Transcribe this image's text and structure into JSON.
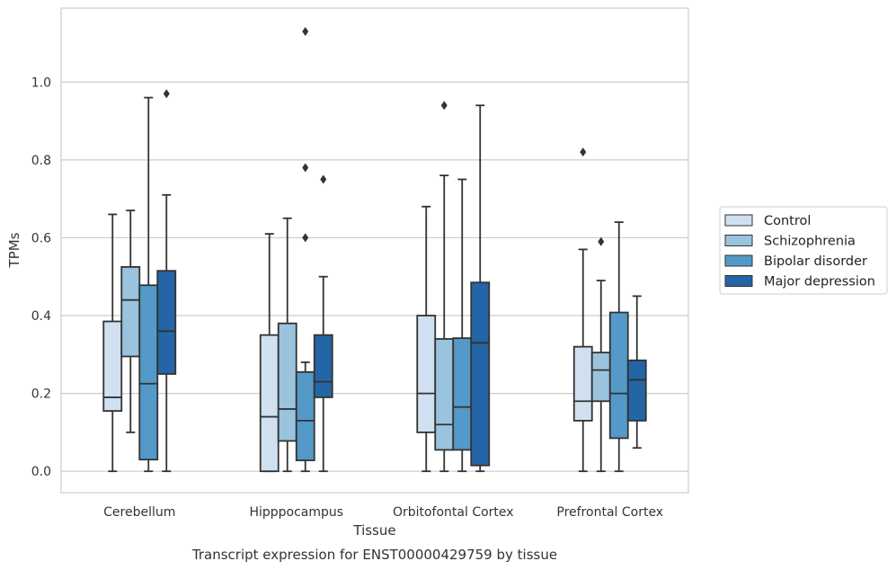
{
  "chart_data": {
    "type": "box",
    "xlabel": "Tissue",
    "ylabel": "TPMs",
    "caption": "Transcript expression for ENST00000429759 by tissue",
    "categories": [
      "Cerebellum",
      "Hipppocampus",
      "Orbitofontal Cortex",
      "Prefrontal Cortex"
    ],
    "yticks": [
      "0.0",
      "0.2",
      "0.4",
      "0.6",
      "0.8",
      "1.0"
    ],
    "ylim": [
      -0.055,
      1.19
    ],
    "grid": "horizontal",
    "legend_position": "right",
    "series": [
      {
        "name": "Control",
        "color": "#d0e0f0",
        "boxes": [
          {
            "whislo": 0.0,
            "q1": 0.155,
            "med": 0.19,
            "q3": 0.385,
            "whishi": 0.66,
            "fliers": []
          },
          {
            "whislo": 0.0,
            "q1": 0.0,
            "med": 0.14,
            "q3": 0.35,
            "whishi": 0.61,
            "fliers": []
          },
          {
            "whislo": 0.0,
            "q1": 0.1,
            "med": 0.2,
            "q3": 0.4,
            "whishi": 0.68,
            "fliers": []
          },
          {
            "whislo": 0.0,
            "q1": 0.13,
            "med": 0.18,
            "q3": 0.32,
            "whishi": 0.57,
            "fliers": [
              0.82
            ]
          }
        ]
      },
      {
        "name": "Schizophrenia",
        "color": "#9ac3dd",
        "boxes": [
          {
            "whislo": 0.1,
            "q1": 0.295,
            "med": 0.44,
            "q3": 0.525,
            "whishi": 0.67,
            "fliers": []
          },
          {
            "whislo": 0.0,
            "q1": 0.078,
            "med": 0.16,
            "q3": 0.38,
            "whishi": 0.65,
            "fliers": []
          },
          {
            "whislo": 0.0,
            "q1": 0.055,
            "med": 0.12,
            "q3": 0.34,
            "whishi": 0.76,
            "fliers": [
              0.94
            ]
          },
          {
            "whislo": 0.0,
            "q1": 0.18,
            "med": 0.26,
            "q3": 0.305,
            "whishi": 0.49,
            "fliers": [
              0.59
            ]
          }
        ]
      },
      {
        "name": "Bipolar disorder",
        "color": "#5499c7",
        "boxes": [
          {
            "whislo": 0.0,
            "q1": 0.03,
            "med": 0.225,
            "q3": 0.478,
            "whishi": 0.96,
            "fliers": []
          },
          {
            "whislo": 0.0,
            "q1": 0.028,
            "med": 0.13,
            "q3": 0.255,
            "whishi": 0.28,
            "fliers": [
              0.6,
              0.78,
              1.13
            ]
          },
          {
            "whislo": 0.0,
            "q1": 0.055,
            "med": 0.165,
            "q3": 0.342,
            "whishi": 0.75,
            "fliers": []
          },
          {
            "whislo": 0.0,
            "q1": 0.085,
            "med": 0.2,
            "q3": 0.408,
            "whishi": 0.64,
            "fliers": []
          }
        ]
      },
      {
        "name": "Major depression",
        "color": "#2465a5",
        "boxes": [
          {
            "whislo": 0.0,
            "q1": 0.25,
            "med": 0.36,
            "q3": 0.515,
            "whishi": 0.71,
            "fliers": [
              0.97
            ]
          },
          {
            "whislo": 0.0,
            "q1": 0.19,
            "med": 0.23,
            "q3": 0.35,
            "whishi": 0.5,
            "fliers": [
              0.75
            ]
          },
          {
            "whislo": 0.0,
            "q1": 0.015,
            "med": 0.33,
            "q3": 0.485,
            "whishi": 0.94,
            "fliers": []
          },
          {
            "whislo": 0.06,
            "q1": 0.13,
            "med": 0.235,
            "q3": 0.285,
            "whishi": 0.45,
            "fliers": []
          }
        ]
      }
    ]
  }
}
